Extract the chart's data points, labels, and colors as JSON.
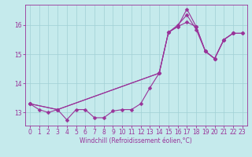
{
  "background_color": "#c5eaec",
  "grid_color": "#a0d0d4",
  "line_color": "#993399",
  "xlabel": "Windchill (Refroidissement éolien,°C)",
  "xlim": [
    -0.5,
    23.5
  ],
  "ylim": [
    12.55,
    16.7
  ],
  "yticks": [
    13,
    14,
    15,
    16
  ],
  "xticks": [
    0,
    1,
    2,
    3,
    4,
    5,
    6,
    7,
    8,
    9,
    10,
    11,
    12,
    13,
    14,
    15,
    16,
    17,
    18,
    19,
    20,
    21,
    22,
    23
  ],
  "line1_x": [
    0,
    1,
    2,
    3,
    4,
    5,
    6,
    7,
    8,
    9,
    10,
    11,
    12,
    13,
    14,
    15,
    16,
    17,
    18,
    19,
    20,
    21,
    22
  ],
  "line1_y": [
    13.3,
    13.1,
    13.0,
    13.1,
    12.75,
    13.1,
    13.1,
    12.82,
    12.82,
    13.05,
    13.1,
    13.1,
    13.3,
    13.85,
    14.35,
    15.75,
    16.0,
    16.35,
    15.85,
    15.1,
    14.85,
    15.5,
    15.72
  ],
  "line2_x": [
    0,
    3,
    14,
    15,
    16,
    17,
    18,
    19,
    20,
    21,
    22,
    23
  ],
  "line2_y": [
    13.3,
    13.1,
    14.35,
    15.75,
    15.95,
    16.55,
    15.95,
    15.1,
    14.85,
    15.5,
    15.72,
    15.72
  ],
  "line3_x": [
    0,
    3,
    14,
    15,
    16,
    17,
    18,
    19,
    20,
    21,
    22,
    23
  ],
  "line3_y": [
    13.3,
    13.1,
    14.35,
    15.75,
    15.95,
    16.1,
    15.95,
    15.1,
    14.85,
    15.5,
    15.72,
    15.72
  ],
  "markersize": 2.5,
  "linewidth": 0.8,
  "tick_fontsize": 5.5,
  "xlabel_fontsize": 5.5
}
